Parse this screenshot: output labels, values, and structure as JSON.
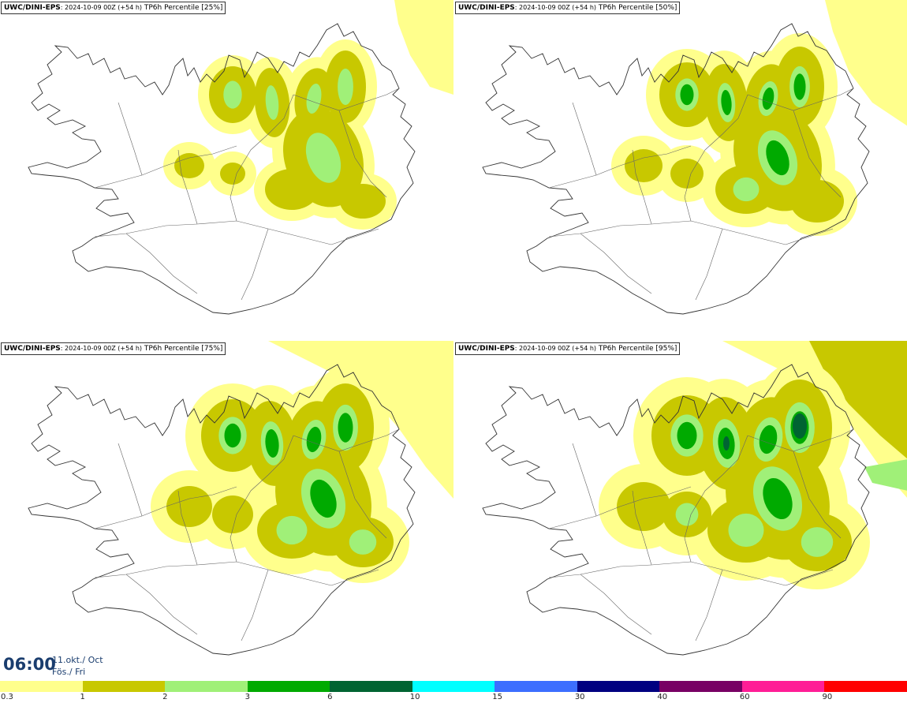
{
  "panels": [
    {
      "source": "UWC/DINI-EPS",
      "run": ": 2024-10-09 00Z (+54 h)",
      "param": " TP6h Percentile [25%]",
      "percentile": 25
    },
    {
      "source": "UWC/DINI-EPS",
      "run": ": 2024-10-09 00Z (+54 h)",
      "param": " TP6h Percentile [50%]",
      "percentile": 50
    },
    {
      "source": "UWC/DINI-EPS",
      "run": ": 2024-10-09 00Z (+54 h)",
      "param": " TP6h Percentile [75%]",
      "percentile": 75
    },
    {
      "source": "UWC/DINI-EPS",
      "run": ": 2024-10-09 00Z (+54 h)",
      "param": " TP6h Percentile [95%]",
      "percentile": 95
    }
  ],
  "valid_time": {
    "time": "06:00",
    "date_line1": "11.okt./ Oct",
    "date_line2": "Fös./ Fri"
  },
  "legend": {
    "colors": [
      "#ffff8c",
      "#c8c800",
      "#a0f078",
      "#00aa00",
      "#006432",
      "#00ffff",
      "#3c6eff",
      "#000080",
      "#780064",
      "#ff1e96",
      "#ff0000"
    ],
    "labels": [
      "0.3",
      "1",
      "2",
      "3",
      "6",
      "10",
      "15",
      "30",
      "40",
      "60",
      "90"
    ]
  }
}
